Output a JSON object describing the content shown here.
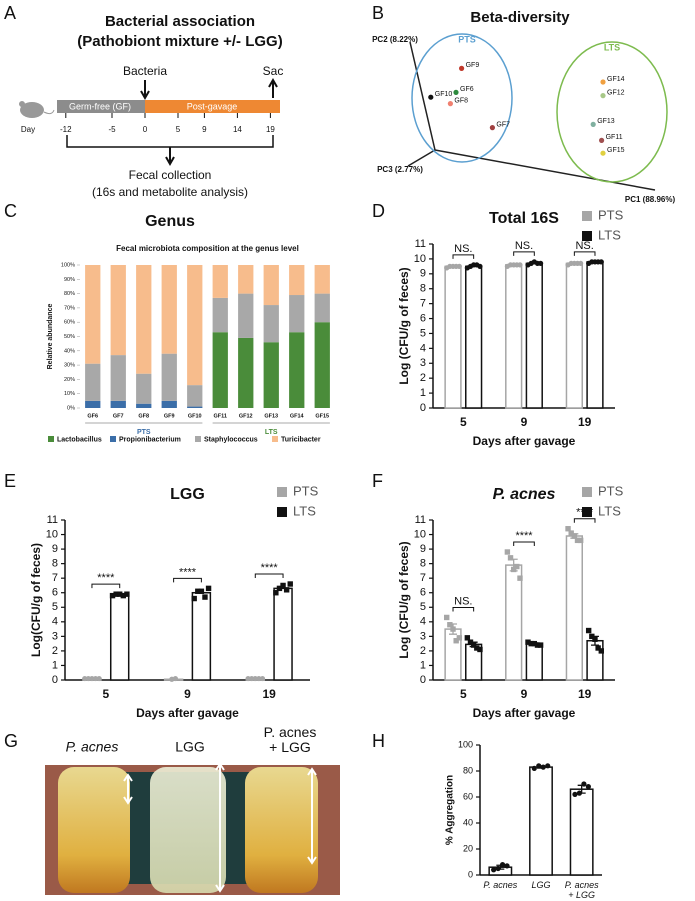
{
  "panels": [
    "A",
    "B",
    "C",
    "D",
    "E",
    "F",
    "G",
    "H"
  ],
  "diagram": {
    "title": "Bacterial association",
    "subtitle": "(Pathobiont mixture +/- LGG)",
    "bacteria_label": "Bacteria",
    "sac_label": "Sac",
    "phase1": "Germ-free (GF)",
    "phase2": "Post-gavage",
    "day_label": "Day",
    "days": [
      -12,
      -5,
      0,
      5,
      9,
      14,
      19
    ],
    "collection": "Fecal collection",
    "collection_note": "(16s and metabolite analysis)"
  },
  "photo": {
    "labels": [
      "P. acnes",
      "LGG",
      "P. acnes + LGG"
    ]
  },
  "chart_data": [
    {
      "type": "pca",
      "title": "Beta-diversity",
      "x_label": "PC1 (88.96%)",
      "y_label": "PC2 (8.22%)",
      "z_label": "PC3 (2.77%)",
      "groups": [
        {
          "name": "PTS",
          "color": "#5b9fd0"
        },
        {
          "name": "LTS",
          "color": "#7dbb4e"
        }
      ],
      "labels": [
        "GF9",
        "GF6",
        "GF10",
        "GF8",
        "GF7",
        "GF14",
        "GF12",
        "GF13",
        "GF11",
        "GF15"
      ],
      "x": [
        22,
        20,
        11,
        18,
        33,
        72.5,
        72.5,
        69,
        72,
        72.5
      ],
      "y": [
        76,
        61,
        58,
        54,
        39,
        67.5,
        59,
        41,
        31,
        23
      ],
      "point_colors": [
        "#c0392b",
        "#2e8b3e",
        "#111111",
        "#f08070",
        "#a04040",
        "#f0a040",
        "#a8c888",
        "#80b0a0",
        "#a05050",
        "#e0d040"
      ],
      "xlim": [
        0,
        100
      ],
      "ylim": [
        0,
        100
      ]
    },
    {
      "type": "stacked_bar",
      "title": "Genus",
      "subtitle": "Fecal microbiota composition at the genus level",
      "y_label": "Relative abundance",
      "categories": [
        "GF6",
        "GF7",
        "GF8",
        "GF9",
        "GF10",
        "GF11",
        "GF12",
        "GF13",
        "GF14",
        "GF15"
      ],
      "group_labels": [
        {
          "name": "PTS",
          "color": "#3b6ea8"
        },
        {
          "name": "LTS",
          "color": "#4a8c3a"
        }
      ],
      "series": [
        {
          "name": "Lactobacillus",
          "color": "#4a8c3a",
          "values": [
            0,
            0,
            0,
            0,
            0,
            53,
            49,
            46,
            53,
            60
          ]
        },
        {
          "name": "Propionibacterium",
          "color": "#3b6ea8",
          "values": [
            5,
            5,
            3,
            5,
            1,
            0,
            0,
            0,
            0,
            0
          ]
        },
        {
          "name": "Staphylococcus",
          "color": "#a8a8a8",
          "values": [
            26,
            32,
            21,
            33,
            15,
            24,
            31,
            26,
            26,
            20
          ]
        },
        {
          "name": "Turicibacter",
          "color": "#f7bc8c",
          "values": [
            69,
            63,
            76,
            62,
            84,
            23,
            20,
            28,
            21,
            20
          ]
        }
      ],
      "ylim": [
        0,
        100
      ],
      "yticks": [
        {
          "value": 0,
          "label": "0%"
        },
        {
          "value": 10,
          "label": "10%"
        },
        {
          "value": 20,
          "label": "20%"
        },
        {
          "value": 30,
          "label": "30%"
        },
        {
          "value": 40,
          "label": "40%"
        },
        {
          "value": 50,
          "label": "50%"
        },
        {
          "value": 60,
          "label": "60%"
        },
        {
          "value": 70,
          "label": "70%"
        },
        {
          "value": 80,
          "label": "80%"
        },
        {
          "value": 90,
          "label": "90%"
        },
        {
          "value": 100,
          "label": "100%"
        }
      ]
    },
    {
      "type": "bar_points",
      "title": "Total 16S",
      "x_label": "Days after gavage",
      "y_label": "Log (CFU/g of feces)",
      "categories": [
        "5",
        "9",
        "19"
      ],
      "legend": "upper right",
      "series": [
        {
          "name": "PTS",
          "color": "#a6a6a6",
          "marker": "circle",
          "values": [
            9.5,
            9.6,
            9.7
          ],
          "points": [
            [
              9.4,
              9.5,
              9.5,
              9.5,
              9.5
            ],
            [
              9.5,
              9.6,
              9.6,
              9.6,
              9.6
            ],
            [
              9.6,
              9.7,
              9.7,
              9.7,
              9.7
            ]
          ]
        },
        {
          "name": "LTS",
          "color": "#111111",
          "marker": "circle",
          "values": [
            9.5,
            9.7,
            9.8
          ],
          "points": [
            [
              9.4,
              9.5,
              9.6,
              9.6,
              9.5
            ],
            [
              9.6,
              9.7,
              9.8,
              9.7,
              9.7
            ],
            [
              9.7,
              9.8,
              9.8,
              9.8,
              9.8
            ]
          ]
        }
      ],
      "annotations": [
        "NS.",
        "NS.",
        "NS."
      ],
      "ylim": [
        0,
        11
      ],
      "yticks": [
        0,
        1,
        2,
        3,
        4,
        5,
        6,
        7,
        8,
        9,
        10,
        11
      ]
    },
    {
      "type": "bar_points",
      "title": "LGG",
      "x_label": "Days after gavage",
      "y_label": "Log(CFU/g of feces)",
      "categories": [
        "5",
        "9",
        "19"
      ],
      "legend": "upper right",
      "series": [
        {
          "name": "PTS",
          "color": "#a6a6a6",
          "marker": "circle",
          "values": [
            0.1,
            0.05,
            0.1
          ],
          "points": [
            [
              0.1,
              0.1,
              0.1,
              0.1,
              0.1
            ],
            [
              0.05,
              0.1
            ],
            [
              0.1,
              0.1,
              0.1,
              0.1,
              0.1
            ]
          ]
        },
        {
          "name": "LTS",
          "color": "#111111",
          "marker": "square",
          "values": [
            5.85,
            6.0,
            6.3
          ],
          "points": [
            [
              5.8,
              5.9,
              5.9,
              5.8,
              5.9
            ],
            [
              5.6,
              6.1,
              6.1,
              5.7,
              6.3
            ],
            [
              6.0,
              6.3,
              6.5,
              6.2,
              6.6
            ]
          ]
        }
      ],
      "annotations": [
        "****",
        "****",
        "****"
      ],
      "ylim": [
        0,
        11
      ],
      "yticks": [
        0,
        1,
        2,
        3,
        4,
        5,
        6,
        7,
        8,
        9,
        10,
        11
      ]
    },
    {
      "type": "bar_points",
      "title": "P. acnes",
      "x_label": "Days after gavage",
      "y_label": "Log (CFU/g of feces)",
      "categories": [
        "5",
        "9",
        "19"
      ],
      "legend": "upper right",
      "series": [
        {
          "name": "PTS",
          "color": "#a6a6a6",
          "marker": "square",
          "values": [
            3.5,
            7.9,
            9.9
          ],
          "errors": [
            0.35,
            0.4,
            0.15
          ],
          "points": [
            [
              4.3,
              3.8,
              3.5,
              2.7,
              2.9
            ],
            [
              8.8,
              8.4,
              7.6,
              7.8,
              7.0
            ],
            [
              10.4,
              10.1,
              9.9,
              9.6,
              9.6
            ]
          ]
        },
        {
          "name": "LTS",
          "color": "#111111",
          "marker": "square",
          "values": [
            2.45,
            2.5,
            2.7
          ],
          "errors": [
            0.15,
            0.05,
            0.3
          ],
          "points": [
            [
              2.9,
              2.6,
              2.4,
              2.2,
              2.1
            ],
            [
              2.6,
              2.5,
              2.5,
              2.4,
              2.4
            ],
            [
              3.4,
              3.0,
              2.8,
              2.2,
              2.0
            ]
          ]
        }
      ],
      "annotations": [
        "NS.",
        "****",
        "****"
      ],
      "ylim": [
        0,
        11
      ],
      "yticks": [
        0,
        1,
        2,
        3,
        4,
        5,
        6,
        7,
        8,
        9,
        10,
        11
      ]
    },
    {
      "type": "bar_points",
      "y_label": "% Aggregation",
      "categories": [
        "P. acnes",
        "LGG",
        "P. acnes + LGG"
      ],
      "color": "#111111",
      "marker": "circle",
      "values": [
        6,
        83,
        66
      ],
      "errors": [
        1.5,
        0.8,
        3
      ],
      "points": [
        [
          4,
          5,
          8,
          7
        ],
        [
          82,
          84,
          83,
          84
        ],
        [
          62,
          63,
          70,
          68
        ]
      ],
      "ylim": [
        0,
        100
      ],
      "yticks": [
        0,
        20,
        40,
        60,
        80,
        100
      ]
    }
  ]
}
